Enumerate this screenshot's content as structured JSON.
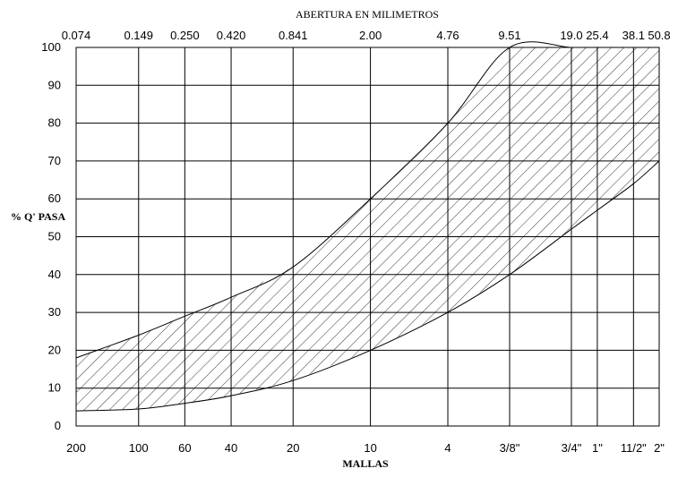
{
  "chart_data": {
    "type": "area",
    "title": "ABERTURA EN MILIMETROS",
    "xlabel": "MALLAS",
    "ylabel": "% Q' PASA",
    "ylim": [
      0,
      100
    ],
    "yticks": [
      "0",
      "10",
      "20",
      "30",
      "40",
      "50",
      "60",
      "70",
      "80",
      "90",
      "100"
    ],
    "grid": true,
    "x_scale": "log",
    "xlim": [
      0.074,
      50.8
    ],
    "top_ticks": [
      "0.074",
      "0.149",
      "0.250",
      "0.420",
      "0.841",
      "2.00",
      "4.76",
      "9.51",
      "19.0",
      "25.4",
      "38.1",
      "50.8"
    ],
    "bottom_ticks": [
      "200",
      "100",
      "60",
      "40",
      "20",
      "10",
      "4",
      "3/8\"",
      "3/4\"",
      "1\"",
      "11/2\"",
      "2\""
    ],
    "sieve_openings_mm": [
      0.074,
      0.149,
      0.25,
      0.42,
      0.841,
      2.0,
      4.76,
      9.51,
      19.0,
      25.4,
      38.1,
      50.8
    ],
    "series": [
      {
        "x": [
          0.074,
          0.149,
          0.25,
          0.42,
          0.841,
          2.0,
          4.76,
          9.51,
          19.0,
          25.4,
          38.1,
          50.8
        ],
        "values": [
          18,
          24,
          29,
          34,
          42,
          60,
          80,
          100,
          100,
          100,
          100,
          100
        ]
      },
      {
        "x": [
          0.074,
          0.149,
          0.25,
          0.42,
          0.841,
          2.0,
          4.76,
          9.51,
          19.0,
          25.4,
          38.1,
          50.8
        ],
        "values": [
          4,
          4.5,
          6,
          8,
          12,
          20,
          30,
          40,
          52,
          57,
          64,
          70
        ]
      }
    ],
    "fill_between": "hatched"
  }
}
